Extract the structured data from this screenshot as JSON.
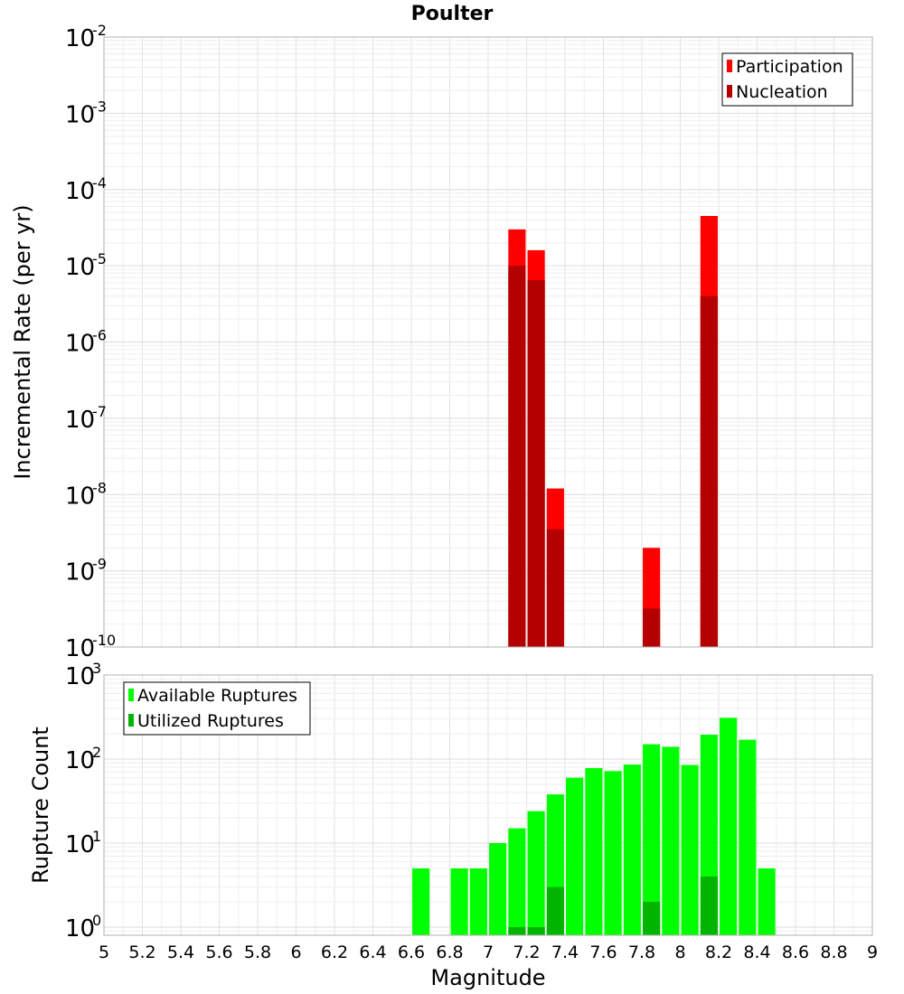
{
  "title": "Poulter",
  "xlabel": "Magnitude",
  "x_ticks": [
    "5",
    "5.2",
    "5.4",
    "5.6",
    "5.8",
    "6",
    "6.2",
    "6.4",
    "6.6",
    "6.8",
    "7",
    "7.2",
    "7.4",
    "7.6",
    "7.8",
    "8",
    "8.2",
    "8.4",
    "8.6",
    "8.8",
    "9"
  ],
  "chart_data": [
    {
      "type": "bar",
      "ylabel": "Incremental Rate (per yr)",
      "y_scale": "log",
      "ylim": [
        1e-10,
        0.01
      ],
      "y_ticks": [
        {
          "base": "10",
          "exp": "-2"
        },
        {
          "base": "10",
          "exp": "-3"
        },
        {
          "base": "10",
          "exp": "-4"
        },
        {
          "base": "10",
          "exp": "-5"
        },
        {
          "base": "10",
          "exp": "-6"
        },
        {
          "base": "10",
          "exp": "-7"
        },
        {
          "base": "10",
          "exp": "-8"
        },
        {
          "base": "10",
          "exp": "-9"
        },
        {
          "base": "10",
          "exp": "-10"
        }
      ],
      "xlim": [
        5,
        9
      ],
      "grid": true,
      "legend": {
        "position": "top-right",
        "entries": [
          "Participation",
          "Nucleation"
        ]
      },
      "series": [
        {
          "name": "Participation",
          "color": "#ff0000",
          "points": [
            {
              "x": 7.15,
              "y": 3e-05
            },
            {
              "x": 7.25,
              "y": 1.6e-05
            },
            {
              "x": 7.35,
              "y": 1.2e-08
            },
            {
              "x": 7.85,
              "y": 2e-09
            },
            {
              "x": 8.15,
              "y": 4.5e-05
            }
          ]
        },
        {
          "name": "Nucleation",
          "color": "#b40000",
          "points": [
            {
              "x": 7.15,
              "y": 1e-05
            },
            {
              "x": 7.25,
              "y": 6.5e-06
            },
            {
              "x": 7.35,
              "y": 3.5e-09
            },
            {
              "x": 7.85,
              "y": 3.2e-10
            },
            {
              "x": 8.15,
              "y": 4e-06
            }
          ]
        }
      ]
    },
    {
      "type": "bar",
      "ylabel": "Rupture Count",
      "y_scale": "log",
      "ylim": [
        0.8,
        1000
      ],
      "y_ticks": [
        {
          "base": "10",
          "exp": "3"
        },
        {
          "base": "10",
          "exp": "2"
        },
        {
          "base": "10",
          "exp": "1"
        },
        {
          "base": "10",
          "exp": "0"
        }
      ],
      "xlim": [
        5,
        9
      ],
      "grid": true,
      "legend": {
        "position": "top-left",
        "entries": [
          "Available Ruptures",
          "Utilized Ruptures"
        ]
      },
      "series": [
        {
          "name": "Available Ruptures",
          "color": "#00ff00",
          "points": [
            {
              "x": 6.65,
              "y": 5
            },
            {
              "x": 6.85,
              "y": 5
            },
            {
              "x": 6.95,
              "y": 5
            },
            {
              "x": 7.05,
              "y": 10
            },
            {
              "x": 7.15,
              "y": 15
            },
            {
              "x": 7.25,
              "y": 24
            },
            {
              "x": 7.35,
              "y": 38
            },
            {
              "x": 7.45,
              "y": 60
            },
            {
              "x": 7.55,
              "y": 78
            },
            {
              "x": 7.65,
              "y": 72
            },
            {
              "x": 7.75,
              "y": 86
            },
            {
              "x": 7.85,
              "y": 150
            },
            {
              "x": 7.95,
              "y": 140
            },
            {
              "x": 8.05,
              "y": 85
            },
            {
              "x": 8.15,
              "y": 195
            },
            {
              "x": 8.25,
              "y": 310
            },
            {
              "x": 8.35,
              "y": 170
            },
            {
              "x": 8.45,
              "y": 5
            }
          ]
        },
        {
          "name": "Utilized Ruptures",
          "color": "#00b400",
          "points": [
            {
              "x": 7.15,
              "y": 1
            },
            {
              "x": 7.25,
              "y": 1
            },
            {
              "x": 7.35,
              "y": 3
            },
            {
              "x": 7.85,
              "y": 2
            },
            {
              "x": 8.15,
              "y": 4
            }
          ]
        }
      ]
    }
  ]
}
